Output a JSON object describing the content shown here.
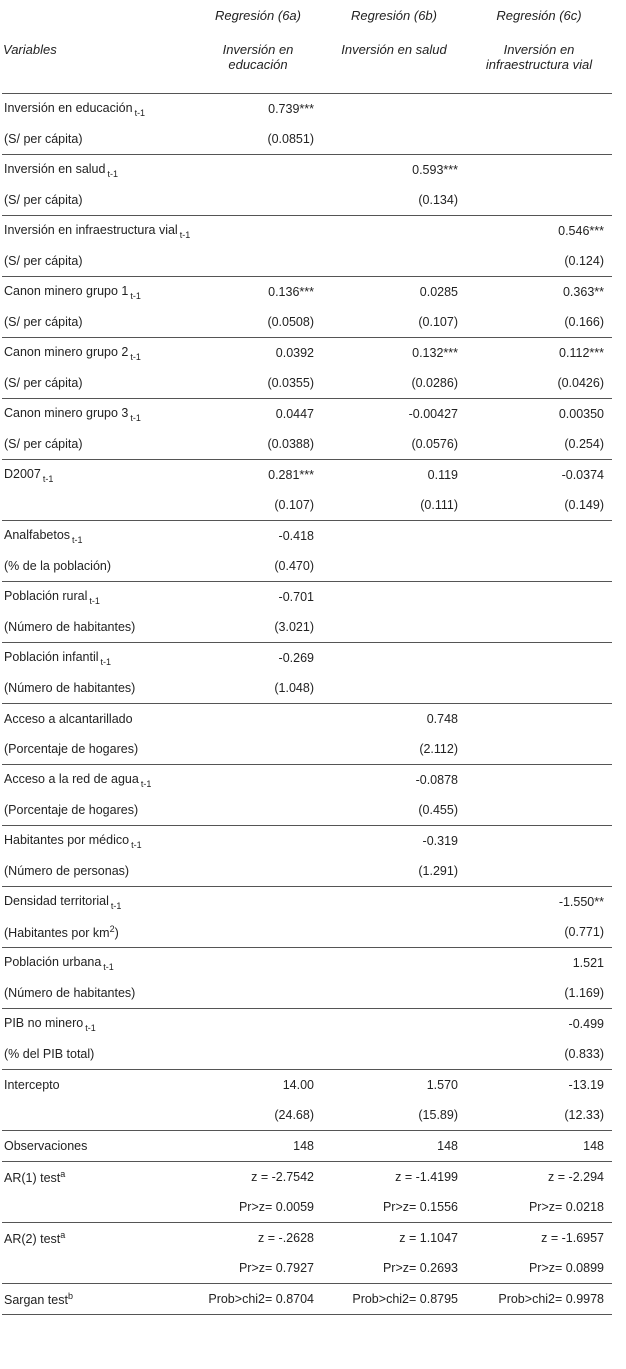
{
  "table": {
    "header": [
      null,
      "Regresión (6a)",
      "Regresión (6b)",
      "Regresión (6c)"
    ],
    "subheader": [
      "Variables",
      "Inversión en educación",
      "Inversión en salud",
      "Inversión en infraestructura vial"
    ],
    "groups": [
      [
        [
          {
            "text": "Inversión en educación",
            "sub": "t-1"
          },
          "0.739***",
          null,
          null
        ],
        [
          "(S/ per cápita)",
          "(0.0851)",
          null,
          null
        ]
      ],
      [
        [
          {
            "text": "Inversión en salud",
            "sub": "t-1"
          },
          null,
          "0.593***",
          null
        ],
        [
          "(S/ per cápita)",
          null,
          "(0.134)",
          null
        ]
      ],
      [
        [
          {
            "text": "Inversión en infraestructura vial",
            "sub": "t-1"
          },
          null,
          null,
          "0.546***"
        ],
        [
          "(S/ per cápita)",
          null,
          null,
          "(0.124)"
        ]
      ],
      [
        [
          {
            "text": "Canon minero grupo 1",
            "sub": "t-1"
          },
          "0.136***",
          "0.0285",
          "0.363**"
        ],
        [
          "(S/ per cápita)",
          "(0.0508)",
          "(0.107)",
          "(0.166)"
        ]
      ],
      [
        [
          {
            "text": "Canon minero grupo 2",
            "sub": "t-1"
          },
          "0.0392",
          "0.132***",
          "0.112***"
        ],
        [
          "(S/ per cápita)",
          "(0.0355)",
          "(0.0286)",
          "(0.0426)"
        ]
      ],
      [
        [
          {
            "text": "Canon minero grupo 3",
            "sub": "t-1"
          },
          "0.0447",
          "-0.00427",
          "0.00350"
        ],
        [
          "(S/ per cápita)",
          "(0.0388)",
          "(0.0576)",
          "(0.254)"
        ]
      ],
      [
        [
          {
            "text": "D2007",
            "sub": "t-1"
          },
          "0.281***",
          "0.119",
          "-0.0374"
        ],
        [
          null,
          "(0.107)",
          "(0.111)",
          "(0.149)"
        ]
      ],
      [
        [
          {
            "text": "Analfabetos",
            "sub": "t-1"
          },
          "-0.418",
          null,
          null
        ],
        [
          "(% de la población)",
          "(0.470)",
          null,
          null
        ]
      ],
      [
        [
          {
            "text": "Población rural",
            "sub": "t-1"
          },
          "-0.701",
          null,
          null
        ],
        [
          "(Número de habitantes)",
          "(3.021)",
          null,
          null
        ]
      ],
      [
        [
          {
            "text": "Población infantil",
            "sub": "t-1"
          },
          "-0.269",
          null,
          null
        ],
        [
          "(Número de habitantes)",
          "(1.048)",
          null,
          null
        ]
      ],
      [
        [
          "Acceso a alcantarillado",
          null,
          "0.748",
          null
        ],
        [
          "(Porcentaje de hogares)",
          null,
          "(2.112)",
          null
        ]
      ],
      [
        [
          {
            "text": "Acceso a la red de agua",
            "sub": "t-1"
          },
          null,
          "-0.0878",
          null
        ],
        [
          "(Porcentaje de hogares)",
          null,
          "(0.455)",
          null
        ]
      ],
      [
        [
          {
            "text": "Habitantes por médico",
            "sub": "t-1"
          },
          null,
          "-0.319",
          null
        ],
        [
          "(Número de personas)",
          null,
          "(1.291)",
          null
        ]
      ],
      [
        [
          {
            "text": "Densidad territorial",
            "sub": "t-1"
          },
          null,
          null,
          "-1.550**"
        ],
        [
          {
            "text": "(Habitantes por km",
            "sup": "2",
            "after": ")"
          },
          null,
          null,
          "(0.771)"
        ]
      ],
      [
        [
          {
            "text": "Población urbana",
            "sub": "t-1"
          },
          null,
          null,
          "1.521"
        ],
        [
          "(Número de habitantes)",
          null,
          null,
          "(1.169)"
        ]
      ],
      [
        [
          {
            "text": "PIB no minero",
            "sub": "t-1"
          },
          null,
          null,
          "-0.499"
        ],
        [
          "(% del PIB total)",
          null,
          null,
          "(0.833)"
        ]
      ],
      [
        [
          "Intercepto",
          "14.00",
          "1.570",
          "-13.19"
        ],
        [
          null,
          "(24.68)",
          "(15.89)",
          "(12.33)"
        ]
      ],
      [
        [
          "Observaciones",
          "148",
          "148",
          "148"
        ]
      ],
      [
        [
          {
            "text": "AR(1) test",
            "sup": "a"
          },
          "z = -2.7542",
          "z = -1.4199",
          "z = -2.294"
        ],
        [
          null,
          "Pr>z= 0.0059",
          "Pr>z= 0.1556",
          "Pr>z= 0.0218"
        ]
      ],
      [
        [
          {
            "text": "AR(2) test",
            "sup": "a"
          },
          "z = -.2628",
          "z = 1.1047",
          "z = -1.6957"
        ],
        [
          null,
          "Pr>z= 0.7927",
          "Pr>z= 0.2693",
          "Pr>z= 0.0899"
        ]
      ],
      [
        [
          {
            "text": "Sargan test",
            "sup": "b"
          },
          "Prob>chi2= 0.8704",
          "Prob>chi2= 0.8795",
          "Prob>chi2= 0.9978"
        ]
      ]
    ]
  }
}
